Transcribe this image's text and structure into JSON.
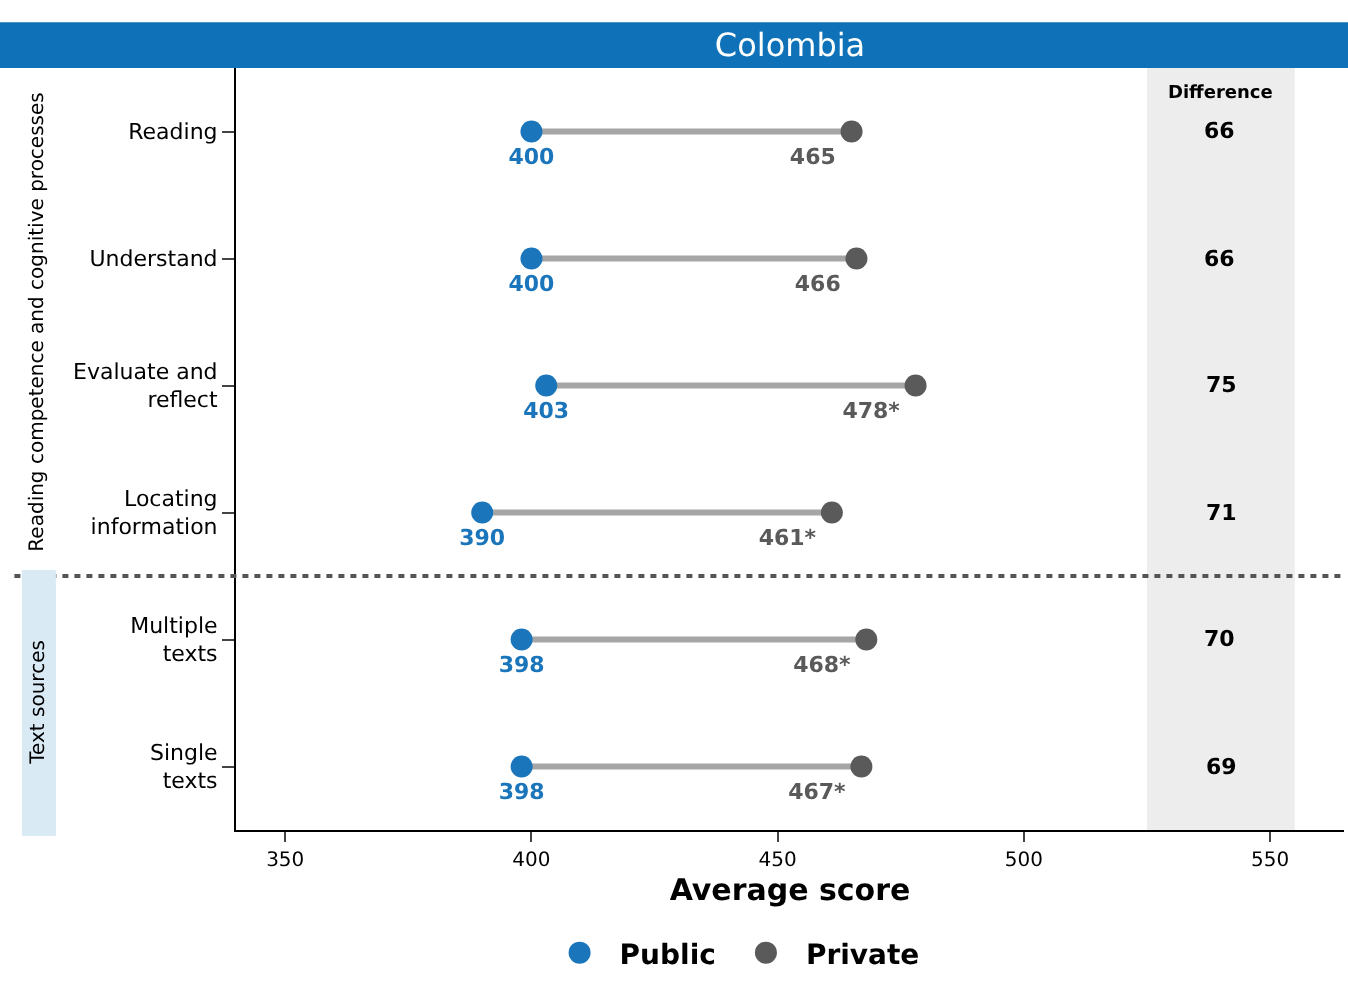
{
  "chart_data": {
    "type": "scatter",
    "title": "Colombia",
    "xlabel": "Average score",
    "categories": [
      "Reading",
      "Understand",
      "Evaluate and reflect",
      "Locating information",
      "Multiple texts",
      "Single texts"
    ],
    "series": [
      {
        "name": "Public",
        "color": "#1a75bb",
        "values": [
          400,
          400,
          403,
          390,
          398,
          398
        ],
        "value_labels": [
          "400",
          "400",
          "403",
          "390",
          "398",
          "398"
        ]
      },
      {
        "name": "Private",
        "color": "#5a5a5a",
        "values": [
          465,
          466,
          478,
          461,
          468,
          467
        ],
        "value_labels": [
          "465",
          "466",
          "478*",
          "461*",
          "468*",
          "467*"
        ]
      }
    ],
    "marker": "circle",
    "orientation": "horizontal",
    "xlim": [
      340,
      565
    ],
    "xticks": [
      350,
      400,
      450,
      500,
      550
    ],
    "bands": [
      {
        "axis": "x",
        "from": 525,
        "to": 555,
        "label": "Difference",
        "color": "#ededed"
      }
    ],
    "annotations": [
      "Reading competence and cognitive processes",
      "Text sources",
      "66",
      "66",
      "75",
      "71",
      "70",
      "69"
    ],
    "grid": false,
    "legend": "bottom"
  }
}
